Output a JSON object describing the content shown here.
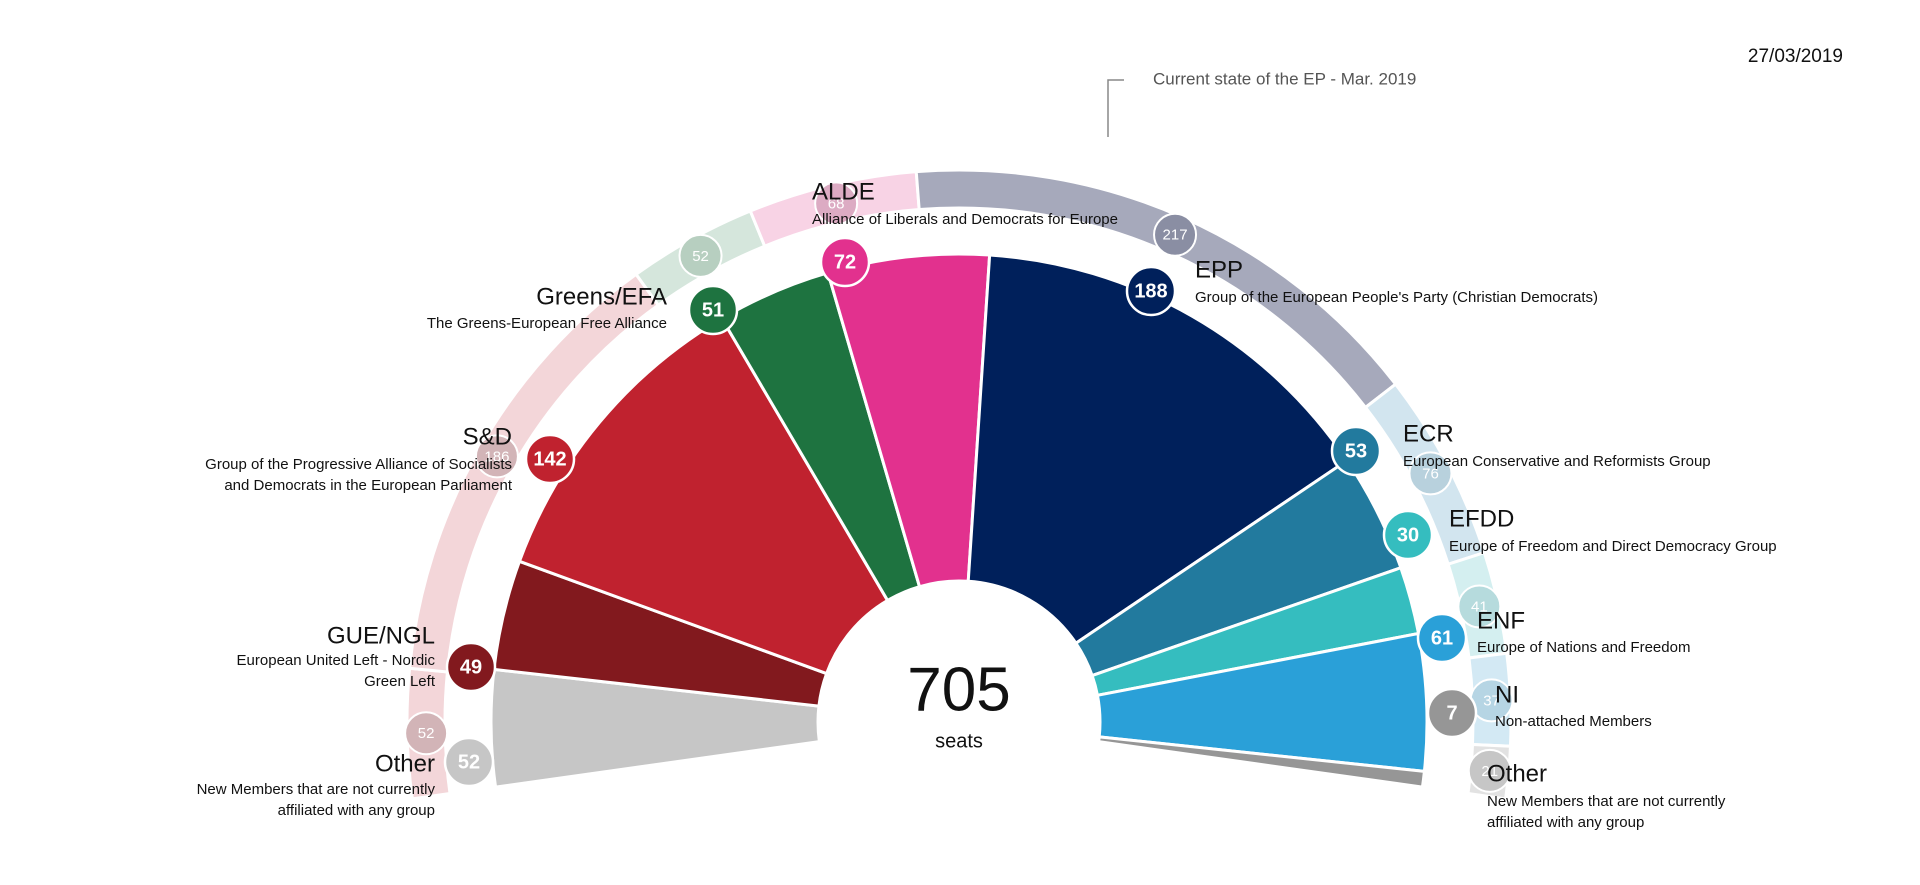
{
  "chart_data": {
    "type": "parliament",
    "date": "27/03/2019",
    "annotation": "Current state of the EP - Mar. 2019",
    "center_value": "705",
    "center_unit": "seats",
    "groups": [
      {
        "name": "Other",
        "description": [
          "New Members that are not currently",
          "affiliated with any group"
        ],
        "color": "#c6c6c6",
        "seats": 52
      },
      {
        "name": "GUE/NGL",
        "description": [
          "European United Left - Nordic",
          "Green Left"
        ],
        "color": "#82191e",
        "seats": 49
      },
      {
        "name": "S&D",
        "description": [
          "Group of the Progressive Alliance of Socialists",
          "and Democrats in the European Parliament"
        ],
        "color": "#c0222f",
        "seats": 142
      },
      {
        "name": "Greens/EFA",
        "description": [
          "The Greens-European Free Alliance"
        ],
        "color": "#1e7340",
        "seats": 51
      },
      {
        "name": "ALDE",
        "description": [
          "Alliance of Liberals and Democrats for Europe"
        ],
        "color": "#e2318e",
        "seats": 72
      },
      {
        "name": "EPP",
        "description": [
          "Group of the European People's Party (Christian Democrats)"
        ],
        "color": "#00205b",
        "seats": 188
      },
      {
        "name": "ECR",
        "description": [
          "European Conservative and Reformists Group"
        ],
        "color": "#227a9e",
        "seats": 53
      },
      {
        "name": "EFDD",
        "description": [
          "Europe of Freedom and Direct Democracy Group"
        ],
        "color": "#35bdbf",
        "seats": 30
      },
      {
        "name": "ENF",
        "description": [
          "Europe of Nations and Freedom"
        ],
        "color": "#2aa0d8",
        "seats": 61
      },
      {
        "name": "NI",
        "description": [
          "Non-attached Members"
        ],
        "color": "#969696",
        "seats": 7
      },
      {
        "name": "Other",
        "description": [
          "New Members that are not currently",
          "affiliated with any group"
        ]
      }
    ],
    "current": {
      "values": [
        52,
        186,
        52,
        68,
        217,
        76,
        41,
        37,
        21
      ],
      "colors": [
        "#f3d6d9",
        "#f3d6d9",
        "#d5e6dc",
        "#f8d3e5",
        "#a6a9bb",
        "#d2e5ef",
        "#d4eff0",
        "#d3e9f4",
        "#e2e2e2"
      ],
      "bubble_colors": [
        "#d2b4b7",
        "#d2b4b7",
        "#b7cfc0",
        "#dcabc3",
        "#8a8ea3",
        "#b8d1dd",
        "#b6dbdd",
        "#b6d5e4",
        "#c6c6c6"
      ]
    }
  }
}
